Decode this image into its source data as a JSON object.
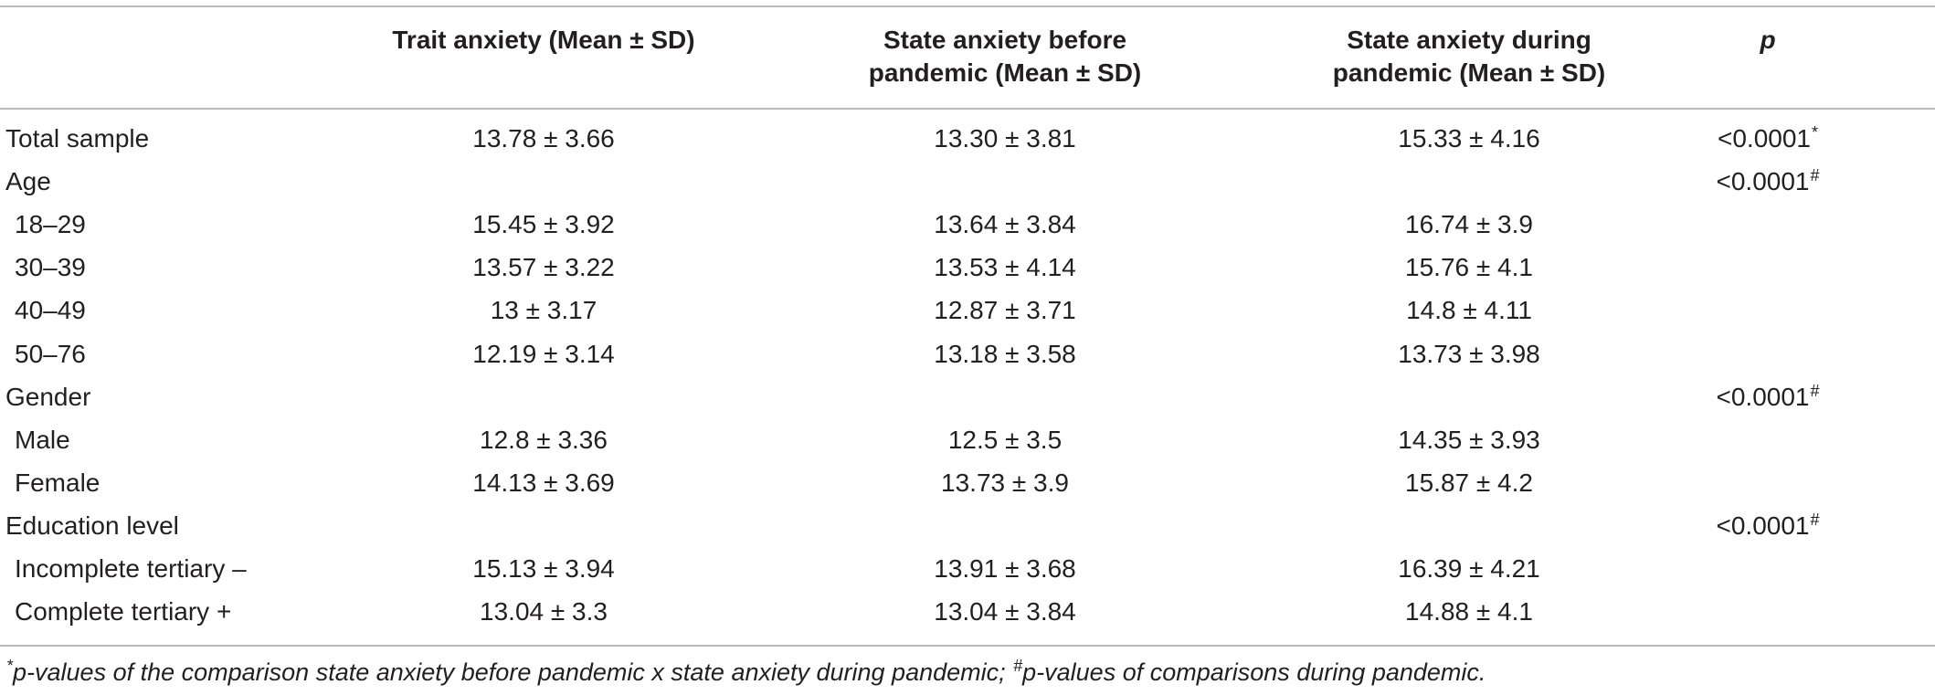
{
  "headers": {
    "trait": [
      "Trait anxiety (Mean ± SD)"
    ],
    "before": [
      "State anxiety before",
      "pandemic (Mean ± SD)"
    ],
    "during": [
      "State anxiety during",
      "pandemic (Mean ± SD)"
    ],
    "p": "p"
  },
  "rows": [
    {
      "label": "Total sample",
      "sub": false,
      "trait": "13.78 ± 3.66",
      "before": "13.30 ± 3.81",
      "during": "15.33 ± 4.16",
      "p": "<0.0001",
      "p_mark": "*"
    },
    {
      "label": "Age",
      "sub": false,
      "trait": "",
      "before": "",
      "during": "",
      "p": "<0.0001",
      "p_mark": "#"
    },
    {
      "label": "18–29",
      "sub": true,
      "trait": "15.45 ± 3.92",
      "before": "13.64 ± 3.84",
      "during": "16.74 ± 3.9",
      "p": "",
      "p_mark": ""
    },
    {
      "label": "30–39",
      "sub": true,
      "trait": "13.57 ± 3.22",
      "before": "13.53 ± 4.14",
      "during": "15.76 ± 4.1",
      "p": "",
      "p_mark": ""
    },
    {
      "label": "40–49",
      "sub": true,
      "trait": "13 ± 3.17",
      "before": "12.87 ± 3.71",
      "during": "14.8 ± 4.11",
      "p": "",
      "p_mark": ""
    },
    {
      "label": "50–76",
      "sub": true,
      "trait": "12.19 ± 3.14",
      "before": "13.18 ± 3.58",
      "during": "13.73 ± 3.98",
      "p": "",
      "p_mark": ""
    },
    {
      "label": "Gender",
      "sub": false,
      "trait": "",
      "before": "",
      "during": "",
      "p": "<0.0001",
      "p_mark": "#"
    },
    {
      "label": "Male",
      "sub": true,
      "trait": "12.8 ± 3.36",
      "before": "12.5 ± 3.5",
      "during": "14.35 ± 3.93",
      "p": "",
      "p_mark": ""
    },
    {
      "label": "Female",
      "sub": true,
      "trait": "14.13 ± 3.69",
      "before": "13.73 ± 3.9",
      "during": "15.87 ± 4.2",
      "p": "",
      "p_mark": ""
    },
    {
      "label": "Education level",
      "sub": false,
      "trait": "",
      "before": "",
      "during": "",
      "p": "<0.0001",
      "p_mark": "#"
    },
    {
      "label": "Incomplete tertiary –",
      "sub": true,
      "trait": "15.13 ± 3.94",
      "before": "13.91 ± 3.68",
      "during": "16.39 ± 4.21",
      "p": "",
      "p_mark": ""
    },
    {
      "label": "Complete tertiary +",
      "sub": true,
      "trait": "13.04 ± 3.3",
      "before": "13.04 ± 3.84",
      "during": "14.88 ± 4.1",
      "p": "",
      "p_mark": ""
    }
  ],
  "footnote": {
    "mark1": "*",
    "text1": "p-values of the comparison state anxiety before pandemic x state anxiety during pandemic; ",
    "mark2": "#",
    "text2": "p-values of comparisons during pandemic."
  }
}
